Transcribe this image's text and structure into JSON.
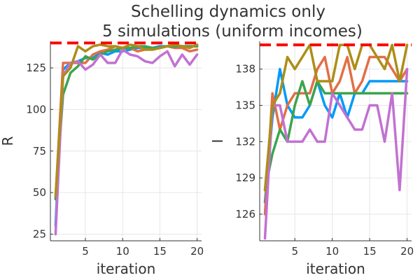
{
  "title_lines": [
    "Schelling dynamics only",
    "5 simulations (uniform incomes)"
  ],
  "colors": {
    "blue": "#009AF9",
    "orange": "#E26F46",
    "green": "#3DA44D",
    "purple": "#C271D2",
    "olive": "#AC8E18",
    "reference": "#FF0000"
  },
  "chart_data": [
    {
      "type": "line",
      "title": "",
      "xlabel": "iteration",
      "ylabel": "R",
      "xlim": [
        0.3,
        20.6
      ],
      "ylim": [
        21,
        141
      ],
      "xticks": [
        5,
        10,
        15,
        20
      ],
      "yticks": [
        25,
        50,
        75,
        100,
        125
      ],
      "grid": true,
      "legend": "none",
      "reference_line": {
        "y": 140,
        "color": "reference",
        "style": "dashed"
      },
      "x": [
        1,
        2,
        3,
        4,
        5,
        6,
        7,
        8,
        9,
        10,
        11,
        12,
        13,
        14,
        15,
        16,
        17,
        18,
        19,
        20
      ],
      "series": [
        {
          "color": "blue",
          "values": [
            30,
            124,
            128,
            129,
            131,
            131,
            134,
            133,
            135,
            135,
            136,
            137,
            137,
            137,
            138,
            138,
            138,
            138,
            138,
            138
          ]
        },
        {
          "color": "orange",
          "values": [
            47,
            128,
            128,
            128,
            128,
            133,
            135,
            136,
            138,
            137,
            137,
            135,
            136,
            136,
            137,
            138,
            137,
            137,
            135,
            136
          ]
        },
        {
          "color": "green",
          "values": [
            46,
            109,
            122,
            126,
            132,
            130,
            133,
            135,
            136,
            137,
            137,
            138,
            138,
            137,
            137,
            138,
            138,
            138,
            138,
            138
          ]
        },
        {
          "color": "purple",
          "values": [
            25,
            120,
            128,
            129,
            124,
            127,
            133,
            128,
            128,
            136,
            133,
            132,
            129,
            128,
            132,
            135,
            126,
            133,
            127,
            133
          ]
        },
        {
          "color": "olive",
          "values": [
            48,
            120,
            125,
            138,
            135,
            138,
            139,
            138,
            138,
            137,
            139,
            138,
            136,
            136,
            137,
            138,
            139,
            138,
            137,
            139
          ]
        }
      ]
    },
    {
      "type": "line",
      "title": "",
      "xlabel": "iteration",
      "ylabel": "I",
      "xlim": [
        0.3,
        20.6
      ],
      "ylim": [
        123.8,
        140.3
      ],
      "xticks": [
        5,
        10,
        15,
        20
      ],
      "yticks": [
        126,
        129,
        132,
        135,
        138
      ],
      "grid": true,
      "legend": "none",
      "reference_line": {
        "y": 140,
        "color": "reference",
        "style": "dashed"
      },
      "x": [
        1,
        2,
        3,
        4,
        5,
        6,
        7,
        8,
        9,
        10,
        11,
        12,
        13,
        14,
        15,
        16,
        17,
        18,
        19,
        20
      ],
      "series": [
        {
          "color": "blue",
          "values": [
            127,
            134,
            138,
            135,
            134,
            134,
            135,
            137,
            135,
            134,
            136,
            134,
            136,
            136,
            137,
            137,
            137,
            137,
            137,
            137
          ]
        },
        {
          "color": "orange",
          "values": [
            126,
            136,
            133,
            135,
            136,
            136,
            136,
            138,
            139,
            136,
            137,
            139,
            136,
            137,
            139,
            139,
            139,
            138,
            137,
            138
          ]
        },
        {
          "color": "green",
          "values": [
            128,
            131,
            133,
            132,
            135,
            137,
            135,
            137,
            136,
            136,
            136,
            136,
            136,
            136,
            136,
            136,
            136,
            136,
            136,
            136
          ]
        },
        {
          "color": "purple",
          "values": [
            124,
            135,
            135,
            132,
            132,
            132,
            133,
            132,
            132,
            136,
            135,
            134,
            133,
            133,
            135,
            135,
            132,
            136,
            128,
            138
          ]
        },
        {
          "color": "olive",
          "values": [
            128,
            135,
            136,
            139,
            138,
            139,
            140,
            137,
            137,
            137,
            140,
            140,
            138,
            140,
            140,
            139,
            138,
            140,
            137,
            140
          ]
        }
      ]
    }
  ]
}
